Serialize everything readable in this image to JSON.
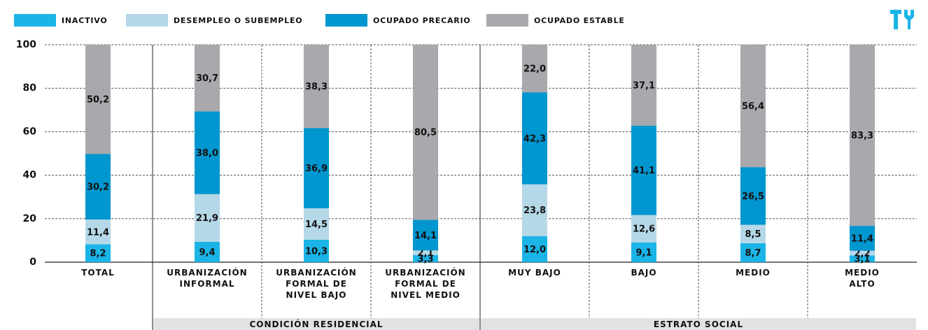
{
  "chart_data": {
    "type": "stacked_bar",
    "categories": [
      "TOTAL",
      "URBANIZACIÓN\nINFORMAL",
      "URBANIZACIÓN\nFORMAL DE\nNIVEL BAJO",
      "URBANIZACIÓN\nFORMAL DE\nNIVEL MEDIO",
      "MUY BAJO",
      "BAJO",
      "MEDIO",
      "MEDIO\nALTO"
    ],
    "groups": [
      {
        "name": "CONDICIÓN RESIDENCIAL",
        "start": 1,
        "end": 3
      },
      {
        "name": "ESTRATO SOCIAL",
        "start": 4,
        "end": 7
      }
    ],
    "series": [
      {
        "name": "INACTIVO",
        "color": "#1ab4e6",
        "values": [
          8.2,
          9.4,
          10.3,
          3.3,
          12.0,
          9.1,
          8.7,
          3.1
        ],
        "value_labels": [
          "8,2",
          "9,4",
          "10,3",
          "3,3",
          "12,0",
          "9,1",
          "8,7",
          "3,1"
        ]
      },
      {
        "name": "DESEMPLEO O SUBEMPLEO",
        "color": "#b5d8e8",
        "values": [
          11.4,
          21.9,
          14.5,
          2.1,
          23.8,
          12.6,
          8.5,
          2.2
        ],
        "value_labels": [
          "11,4",
          "21,9",
          "14,5",
          "2,1",
          "23,8",
          "12,6",
          "8,5",
          "2,2"
        ]
      },
      {
        "name": "OCUPADO PRECARIO",
        "color": "#0096cf",
        "values": [
          30.2,
          38.0,
          36.9,
          14.1,
          42.3,
          41.1,
          26.5,
          11.4
        ],
        "value_labels": [
          "30,2",
          "38,0",
          "36,9",
          "14,1",
          "42,3",
          "41,1",
          "26,5",
          "11,4"
        ]
      },
      {
        "name": "OCUPADO ESTABLE",
        "color": "#a8a8ad",
        "values": [
          50.2,
          30.7,
          38.3,
          80.5,
          22.0,
          37.1,
          56.4,
          83.3
        ],
        "value_labels": [
          "50,2",
          "30,7",
          "38,3",
          "80,5",
          "22,0",
          "37,1",
          "56,4",
          "83,3"
        ]
      }
    ],
    "ylim": [
      0,
      100
    ],
    "yticks": [
      0,
      20,
      40,
      60,
      80,
      100
    ],
    "grid": true
  }
}
